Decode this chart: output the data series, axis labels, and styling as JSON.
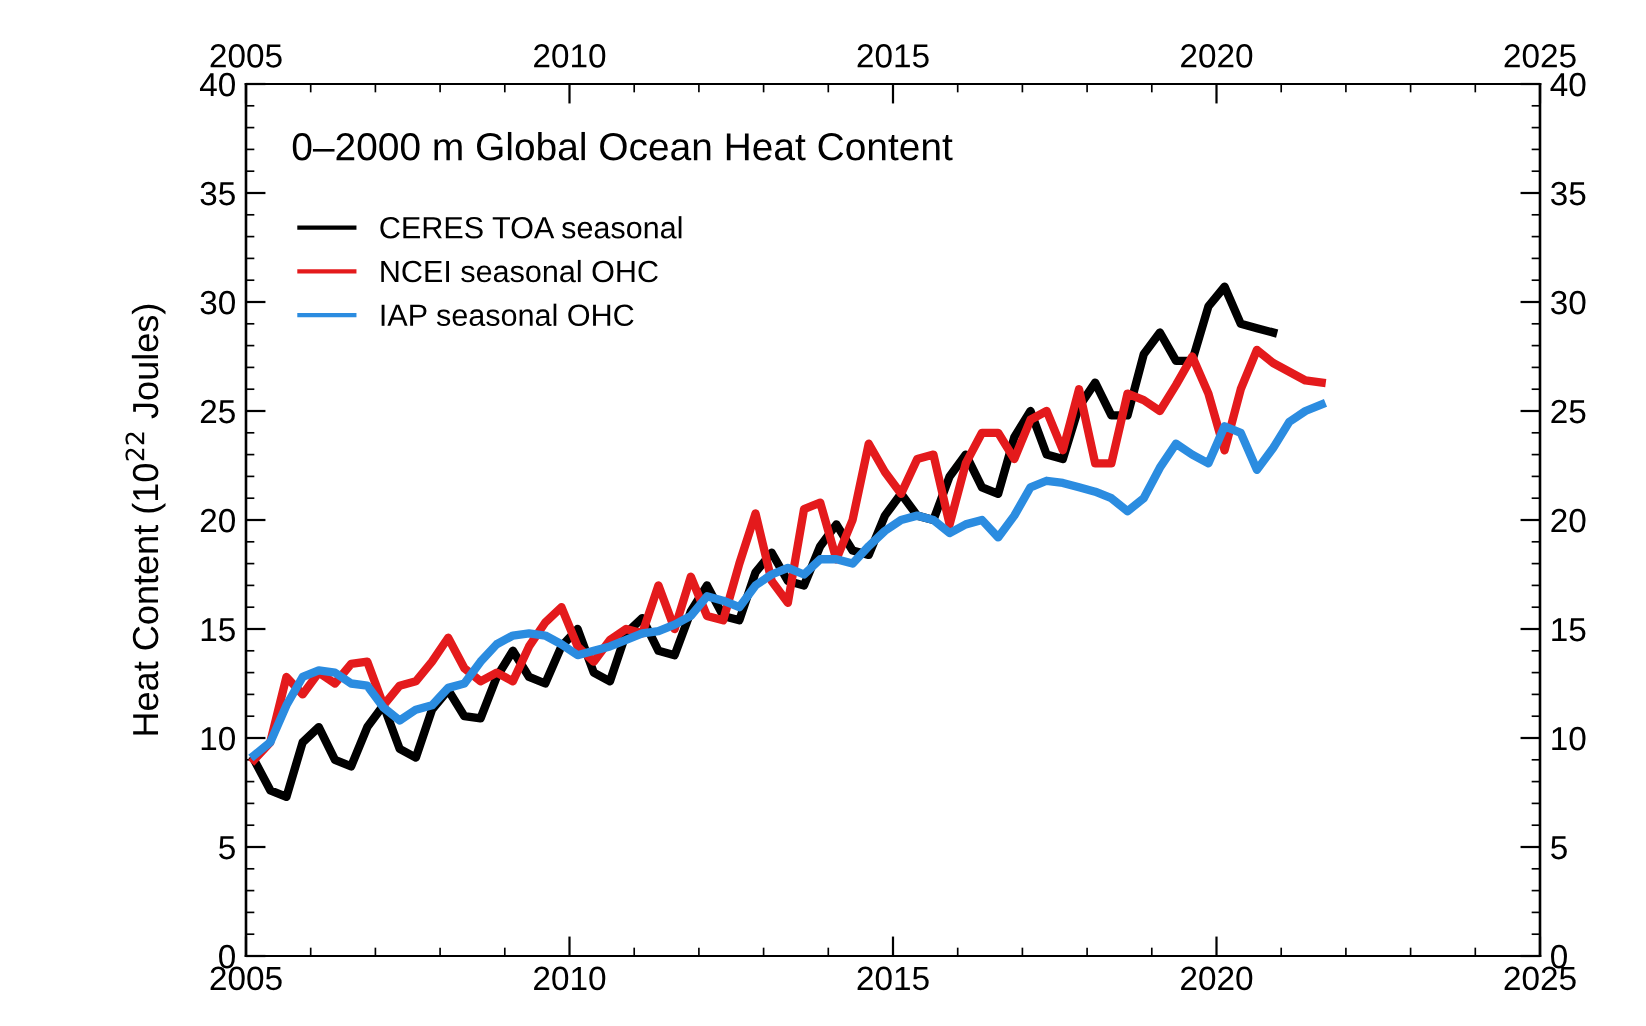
{
  "chart_data": {
    "type": "line",
    "title": "0–2000 m Global Ocean Heat Content",
    "ylabel": "Heat Content (10$^{22}$ Joules)",
    "x": [
      2005.125,
      2005.375,
      2005.625,
      2005.875,
      2006.125,
      2006.375,
      2006.625,
      2006.875,
      2007.125,
      2007.375,
      2007.625,
      2007.875,
      2008.125,
      2008.375,
      2008.625,
      2008.875,
      2009.125,
      2009.375,
      2009.625,
      2009.875,
      2010.125,
      2010.375,
      2010.625,
      2010.875,
      2011.125,
      2011.375,
      2011.625,
      2011.875,
      2012.125,
      2012.375,
      2012.625,
      2012.875,
      2013.125,
      2013.375,
      2013.625,
      2013.875,
      2014.125,
      2014.375,
      2014.625,
      2014.875,
      2015.125,
      2015.375,
      2015.625,
      2015.875,
      2016.125,
      2016.375,
      2016.625,
      2016.875,
      2017.125,
      2017.375,
      2017.625,
      2017.875,
      2018.125,
      2018.375,
      2018.625,
      2018.875,
      2019.125,
      2019.375,
      2019.625,
      2019.875,
      2020.125,
      2020.375,
      2020.625,
      2020.875,
      2021.125,
      2021.375,
      2021.625
    ],
    "series": [
      {
        "name": "CERES TOA seasonal",
        "color": "#000000",
        "values": [
          9,
          7.6,
          7.3,
          9.8,
          10.5,
          9,
          8.7,
          10.5,
          11.5,
          9.5,
          9.1,
          11.3,
          12.2,
          11,
          10.9,
          12.8,
          14,
          12.8,
          12.5,
          14.2,
          15,
          13,
          12.6,
          14.8,
          15.5,
          14,
          13.8,
          15.8,
          17,
          15.6,
          15.4,
          17.6,
          18.5,
          17.2,
          17,
          18.8,
          19.8,
          18.6,
          18.4,
          20.2,
          21.2,
          20.2,
          20,
          22,
          23,
          21.5,
          21.2,
          23.8,
          25,
          23,
          22.8,
          25.2,
          26.3,
          24.8,
          24.8,
          27.6,
          28.6,
          27.3,
          27.3,
          29.8,
          30.7,
          29,
          28.8,
          28.6,
          null,
          null,
          null
        ]
      },
      {
        "name": "NCEI seasonal OHC",
        "color": "#e41a1c",
        "values": [
          9,
          9.8,
          12.8,
          12,
          13,
          12.5,
          13.4,
          13.5,
          11.5,
          12.4,
          12.6,
          13.5,
          14.6,
          13.2,
          12.6,
          13,
          12.6,
          14.2,
          15.3,
          16,
          14.2,
          13.5,
          14.5,
          15,
          14.8,
          17,
          15,
          17.4,
          15.6,
          15.4,
          18,
          20.3,
          17.2,
          16.2,
          20.5,
          20.8,
          18.2,
          20,
          23.5,
          22.2,
          21.2,
          22.8,
          23,
          19.8,
          22.6,
          24,
          24,
          22.8,
          24.6,
          25,
          23.2,
          26,
          22.6,
          22.6,
          25.8,
          25.5,
          25,
          26.2,
          27.5,
          25.8,
          23.2,
          26,
          27.8,
          27.2,
          26.8,
          26.4,
          26.3
        ]
      },
      {
        "name": "IAP seasonal OHC",
        "color": "#2b8ce0",
        "values": [
          9.2,
          9.8,
          11.5,
          12.8,
          13.1,
          13,
          12.5,
          12.4,
          11.4,
          10.8,
          11.3,
          11.5,
          12.3,
          12.5,
          13.5,
          14.3,
          14.7,
          14.8,
          14.7,
          14.3,
          13.8,
          14,
          14.2,
          14.5,
          14.8,
          14.9,
          15.2,
          15.6,
          16.5,
          16.3,
          16,
          17,
          17.5,
          17.8,
          17.5,
          18.2,
          18.2,
          18,
          18.8,
          19.5,
          20,
          20.2,
          20,
          19.4,
          19.8,
          20,
          19.2,
          20.2,
          21.5,
          21.8,
          21.7,
          21.5,
          21.3,
          21,
          20.4,
          21,
          22.4,
          23.5,
          23,
          22.6,
          24.3,
          24,
          22.3,
          23.3,
          24.5,
          25,
          25.3
        ]
      }
    ],
    "xlim": [
      2005,
      2025
    ],
    "xticks": [
      2005,
      2010,
      2015,
      2020,
      2025
    ],
    "x2lim": [
      2005,
      2025
    ],
    "x2ticks": [
      2005,
      2010,
      2015,
      2020,
      2025
    ],
    "ylim": [
      0,
      40
    ],
    "yticks": [
      0,
      5,
      10,
      15,
      20,
      25,
      30,
      35,
      40
    ],
    "y2lim": [
      0,
      40
    ],
    "y2ticks": [
      0,
      5,
      10,
      15,
      20,
      25,
      30,
      35,
      40
    ],
    "grid": false,
    "legend": "top left",
    "marker": "none",
    "line_style": "solid"
  }
}
